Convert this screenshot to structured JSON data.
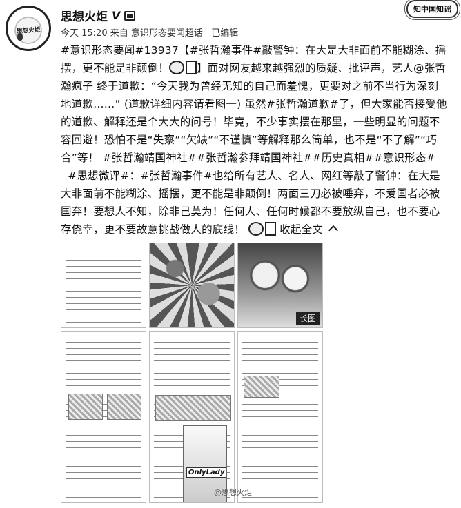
{
  "account": {
    "name": "思想火炬",
    "verified_badge": "V",
    "avatar_text": "思想火炬",
    "member_icon": "member-icon",
    "menu_icon": "menu-icon"
  },
  "watermark": "知中国知谣",
  "meta": {
    "time": "今天 15:20",
    "source": "来自 意识形态要闻超话",
    "edited": "已编辑"
  },
  "post": {
    "p1_seg1": "#意识形态要闻#13937【#张哲瀚事件#敲警钟：在大是大非面前不能糊涂、摇摆，更不能是非颠倒！",
    "p1_seg2": "】面对网友越来越强烈的质疑、批评声，艺人@张哲瀚疯子 终于道歉：“今天我为曾经无知的自己而羞愧，更要对之前不当行为深刻地道歉……” (道歉详细内容请看图一) 虽然#张哲瀚道歉#了，但大家能否接受他的道歉、解释还是个大大的问号！毕竟，不少事实摆在那里，一些明显的问题不容回避！恐怕不是“失察”“欠缺”“不谨慎”等解释那么简单，也不是“不了解”“巧合”等！",
    "p1_tags": "#张哲瀚靖国神社##张哲瀚参拜靖国神社##历史真相##意识形态#",
    "p2": "#思想微评#：#张哲瀚事件#也给所有艺人、名人、网红等敲了警钟：在大是大非面前不能糊涂、摇摆，更不能是非颠倒！两面三刀必被唾弃，不爱国者必被国弃！要想人不知，除非己莫为！任何人、任何时候都不要放纵自己，也不要心存侥幸，更不要故意挑战做人的底线！",
    "collapse_label": "收起全文"
  },
  "images": {
    "long_image_label": "长图",
    "magazine_logo": "OnlyLady",
    "footer_watermark": "@思想火炬"
  }
}
